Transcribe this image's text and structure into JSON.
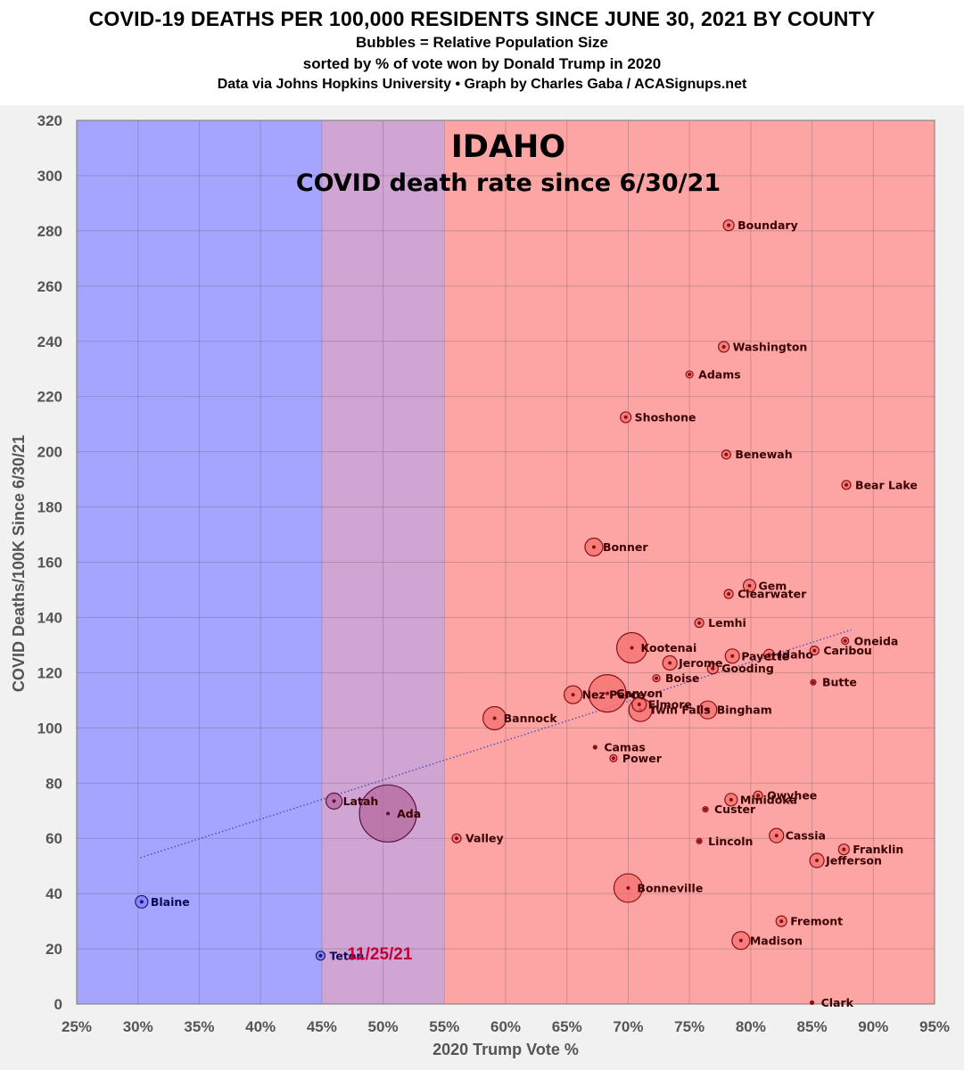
{
  "header": {
    "title": "COVID-19 DEATHS PER 100,000 RESIDENTS SINCE JUNE 30, 2021 BY COUNTY",
    "line2": "Bubbles = Relative Population Size",
    "line3": "sorted by % of vote won by Donald Trump in 2020",
    "line4": "Data via Johns Hopkins University • Graph by Charles Gaba / ACASignups.net"
  },
  "chart_data": {
    "type": "scatter",
    "state_title": "IDAHO",
    "state_subtitle": "COVID death rate since 6/30/21",
    "date_stamp": "11/25/21",
    "xlabel": "2020 Trump Vote %",
    "ylabel": "COVID Deaths/100K Since 6/30/21",
    "xlim": [
      25,
      95
    ],
    "ylim": [
      0,
      320
    ],
    "x_ticks": [
      25,
      30,
      35,
      40,
      45,
      50,
      55,
      60,
      65,
      70,
      75,
      80,
      85,
      90,
      95
    ],
    "x_tick_labels": [
      "25%",
      "30%",
      "35%",
      "40%",
      "45%",
      "50%",
      "55%",
      "60%",
      "65%",
      "70%",
      "75%",
      "80%",
      "85%",
      "90%",
      "95%"
    ],
    "y_ticks": [
      0,
      20,
      40,
      60,
      80,
      100,
      120,
      140,
      160,
      180,
      200,
      220,
      240,
      260,
      280,
      300,
      320
    ],
    "grid": true,
    "background_bands": [
      {
        "from": 25,
        "to": 45,
        "color": "#a5a5ff"
      },
      {
        "from": 45,
        "to": 55,
        "color": "#d0a5d3"
      },
      {
        "from": 55,
        "to": 95,
        "color": "#fda5a5"
      }
    ],
    "trendline": {
      "from": [
        30.2,
        53
      ],
      "to": [
        88.2,
        135.5
      ],
      "color": "#4a4ab8",
      "style": "dotted"
    },
    "bubble_colors": {
      "red": "#f46f6f",
      "blue": "#7f7fff",
      "purple": "#b66a9d"
    },
    "points": [
      {
        "county": "Boundary",
        "x": 78.2,
        "y": 282,
        "r": 6,
        "color": "red"
      },
      {
        "county": "Washington",
        "x": 77.8,
        "y": 238,
        "r": 6,
        "color": "red"
      },
      {
        "county": "Adams",
        "x": 75.0,
        "y": 228,
        "r": 4,
        "color": "red"
      },
      {
        "county": "Shoshone",
        "x": 69.8,
        "y": 212.5,
        "r": 6,
        "color": "red"
      },
      {
        "county": "Benewah",
        "x": 78.0,
        "y": 199,
        "r": 5,
        "color": "red"
      },
      {
        "county": "Bear Lake",
        "x": 87.8,
        "y": 188,
        "r": 5,
        "color": "red"
      },
      {
        "county": "Bonner",
        "x": 67.2,
        "y": 165.5,
        "r": 10,
        "color": "red"
      },
      {
        "county": "Gem",
        "x": 79.9,
        "y": 151.5,
        "r": 7,
        "color": "red"
      },
      {
        "county": "Clearwater",
        "x": 78.2,
        "y": 148.5,
        "r": 5,
        "color": "red"
      },
      {
        "county": "Lemhi",
        "x": 75.8,
        "y": 138,
        "r": 5,
        "color": "red"
      },
      {
        "county": "Oneida",
        "x": 87.7,
        "y": 131.5,
        "r": 4,
        "color": "red"
      },
      {
        "county": "Kootenai",
        "x": 70.3,
        "y": 129,
        "r": 17,
        "color": "red"
      },
      {
        "county": "Caribou",
        "x": 85.2,
        "y": 128,
        "r": 5,
        "color": "red"
      },
      {
        "county": "Idaho",
        "x": 81.5,
        "y": 126.5,
        "r": 6,
        "color": "red"
      },
      {
        "county": "Payette",
        "x": 78.5,
        "y": 126,
        "r": 8,
        "color": "red"
      },
      {
        "county": "Jerome",
        "x": 73.4,
        "y": 123.5,
        "r": 8,
        "color": "red"
      },
      {
        "county": "Gooding",
        "x": 76.9,
        "y": 121.5,
        "r": 6,
        "color": "red"
      },
      {
        "county": "Boise",
        "x": 72.3,
        "y": 118,
        "r": 4,
        "color": "red"
      },
      {
        "county": "Butte",
        "x": 85.1,
        "y": 116.5,
        "r": 3,
        "color": "red"
      },
      {
        "county": "Nez Perce",
        "x": 65.5,
        "y": 112,
        "r": 10,
        "color": "red"
      },
      {
        "county": "Canyon",
        "x": 68.3,
        "y": 112.5,
        "r": 21,
        "color": "red"
      },
      {
        "county": "Elmore",
        "x": 70.9,
        "y": 108.5,
        "r": 8,
        "color": "red"
      },
      {
        "county": "Twin Falls",
        "x": 71.0,
        "y": 106.5,
        "r": 13,
        "color": "red"
      },
      {
        "county": "Bingham",
        "x": 76.5,
        "y": 106.5,
        "r": 10,
        "color": "red"
      },
      {
        "county": "Bannock",
        "x": 59.1,
        "y": 103.5,
        "r": 13,
        "color": "red"
      },
      {
        "county": "Camas",
        "x": 67.3,
        "y": 93,
        "r": 2,
        "color": "red"
      },
      {
        "county": "Power",
        "x": 68.8,
        "y": 89,
        "r": 4,
        "color": "red"
      },
      {
        "county": "Owyhee",
        "x": 80.6,
        "y": 75.5,
        "r": 5,
        "color": "red"
      },
      {
        "county": "Minidoka",
        "x": 78.4,
        "y": 74,
        "r": 7,
        "color": "red"
      },
      {
        "county": "Latah",
        "x": 46.0,
        "y": 73.5,
        "r": 9,
        "color": "purple"
      },
      {
        "county": "Custer",
        "x": 76.3,
        "y": 70.5,
        "r": 3,
        "color": "red"
      },
      {
        "county": "Ada",
        "x": 50.4,
        "y": 69,
        "r": 32,
        "color": "purple"
      },
      {
        "county": "Cassia",
        "x": 82.1,
        "y": 61,
        "r": 8,
        "color": "red"
      },
      {
        "county": "Valley",
        "x": 56.0,
        "y": 60,
        "r": 5,
        "color": "red"
      },
      {
        "county": "Lincoln",
        "x": 75.8,
        "y": 59,
        "r": 3,
        "color": "red"
      },
      {
        "county": "Franklin",
        "x": 87.6,
        "y": 56,
        "r": 6,
        "color": "red"
      },
      {
        "county": "Jefferson",
        "x": 85.4,
        "y": 52,
        "r": 8,
        "color": "red"
      },
      {
        "county": "Bonneville",
        "x": 70.0,
        "y": 42,
        "r": 16,
        "color": "red"
      },
      {
        "county": "Blaine",
        "x": 30.3,
        "y": 37,
        "r": 7,
        "color": "blue"
      },
      {
        "county": "Fremont",
        "x": 82.5,
        "y": 30,
        "r": 6,
        "color": "red"
      },
      {
        "county": "Madison",
        "x": 79.2,
        "y": 23,
        "r": 10,
        "color": "red"
      },
      {
        "county": "Teton",
        "x": 44.9,
        "y": 17.5,
        "r": 5,
        "color": "blue"
      },
      {
        "county": "Clark",
        "x": 85.0,
        "y": 0.5,
        "r": 2,
        "color": "red"
      }
    ]
  }
}
